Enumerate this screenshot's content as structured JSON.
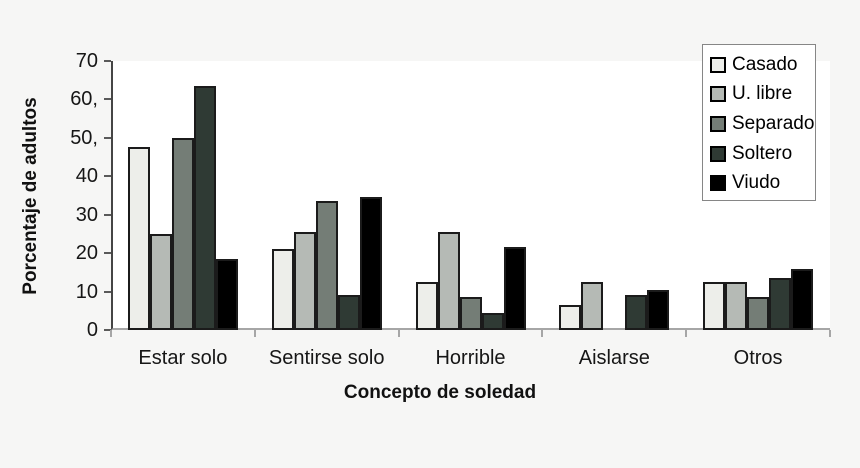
{
  "background_color": "#f6f6f5",
  "plot_bg_color": "#ffffff",
  "chart_data": {
    "type": "bar",
    "title": "",
    "xlabel": "Concepto de soledad",
    "ylabel": "Porcentaje de adultos",
    "ylim": [
      0,
      70
    ],
    "grid": false,
    "legend_position": "top-right",
    "yticks": [
      {
        "value": 0,
        "label": "0"
      },
      {
        "value": 10,
        "label": "10"
      },
      {
        "value": 20,
        "label": "20"
      },
      {
        "value": 30,
        "label": "30"
      },
      {
        "value": 40,
        "label": "40"
      },
      {
        "value": 50,
        "label": "50,"
      },
      {
        "value": 60,
        "label": "60,"
      },
      {
        "value": 70,
        "label": "70"
      }
    ],
    "categories": [
      "Estar solo",
      "Sentirse solo",
      "Horrible",
      "Aislarse",
      "Otros"
    ],
    "series": [
      {
        "name": "Casado",
        "color": "#edeeea",
        "values": [
          47.5,
          21,
          12.5,
          6.5,
          12.5
        ]
      },
      {
        "name": "U. libre",
        "color": "#b5bab5",
        "values": [
          25,
          25.5,
          25.5,
          12.5,
          12.5
        ]
      },
      {
        "name": "Separado",
        "color": "#747d76",
        "values": [
          50,
          33.5,
          8.5,
          0,
          8.5
        ]
      },
      {
        "name": "Soltero",
        "color": "#2f3a34",
        "values": [
          63.5,
          9,
          4.5,
          9,
          13.5
        ]
      },
      {
        "name": "Viudo",
        "color": "#000000",
        "values": [
          18.5,
          34.5,
          21.5,
          10.5,
          16
        ]
      }
    ]
  }
}
